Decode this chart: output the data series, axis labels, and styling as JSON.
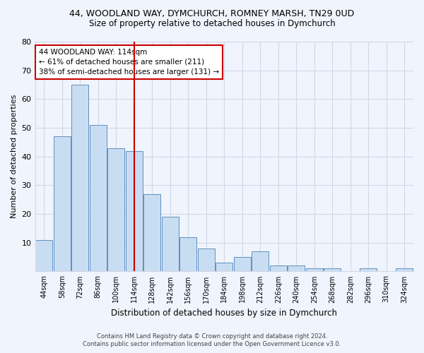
{
  "title1": "44, WOODLAND WAY, DYMCHURCH, ROMNEY MARSH, TN29 0UD",
  "title2": "Size of property relative to detached houses in Dymchurch",
  "xlabel": "Distribution of detached houses by size in Dymchurch",
  "ylabel": "Number of detached properties",
  "categories": [
    "44sqm",
    "58sqm",
    "72sqm",
    "86sqm",
    "100sqm",
    "114sqm",
    "128sqm",
    "142sqm",
    "156sqm",
    "170sqm",
    "184sqm",
    "198sqm",
    "212sqm",
    "226sqm",
    "240sqm",
    "254sqm",
    "268sqm",
    "282sqm",
    "296sqm",
    "310sqm",
    "324sqm"
  ],
  "values": [
    11,
    47,
    65,
    51,
    43,
    42,
    27,
    19,
    12,
    8,
    3,
    5,
    7,
    2,
    2,
    1,
    1,
    0,
    1,
    0,
    1
  ],
  "bar_color": "#c9ddf2",
  "bar_edge_color": "#6090c0",
  "red_line_index": 5,
  "annotation_line1": "44 WOODLAND WAY: 114sqm",
  "annotation_line2": "← 61% of detached houses are smaller (211)",
  "annotation_line3": "38% of semi-detached houses are larger (131) →",
  "annotation_box_color": "#ffffff",
  "annotation_box_edge_color": "#cc0000",
  "red_line_color": "#cc0000",
  "grid_color": "#d0d8e8",
  "background_color": "#f0f4fc",
  "ylim": [
    0,
    80
  ],
  "yticks": [
    0,
    10,
    20,
    30,
    40,
    50,
    60,
    70,
    80
  ],
  "footer1": "Contains HM Land Registry data © Crown copyright and database right 2024.",
  "footer2": "Contains public sector information licensed under the Open Government Licence v3.0."
}
